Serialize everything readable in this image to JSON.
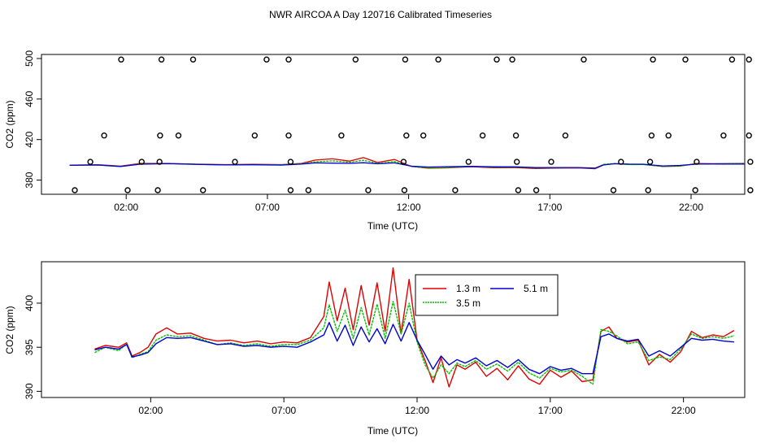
{
  "title": "NWR AIRCOA A  Day 120716  Calibrated Timeseries",
  "colors": {
    "s13": "#e00000",
    "s35": "#00c000",
    "s51": "#0000d0",
    "axis": "#000000"
  },
  "chart_data": [
    {
      "type": "scatter+line",
      "xlabel": "Time (UTC)",
      "ylabel": "CO2 (ppm)",
      "xlim": [
        -1,
        23.9
      ],
      "ylim": [
        366,
        504
      ],
      "xticks": [
        2,
        7,
        12,
        17,
        22
      ],
      "xtick_labels": [
        "02:00",
        "07:00",
        "12:00",
        "17:00",
        "22:00"
      ],
      "yticks": [
        380,
        420,
        460,
        500
      ],
      "ytick_labels": [
        "380",
        "420",
        "460",
        "500"
      ],
      "scatter_points": [
        [
          0.18,
          370
        ],
        [
          2.05,
          370
        ],
        [
          3.12,
          370
        ],
        [
          4.72,
          370
        ],
        [
          7.82,
          370
        ],
        [
          8.45,
          370
        ],
        [
          10.57,
          370
        ],
        [
          11.85,
          370
        ],
        [
          13.65,
          370
        ],
        [
          15.88,
          370
        ],
        [
          16.52,
          370
        ],
        [
          19.25,
          370
        ],
        [
          20.48,
          370
        ],
        [
          22.15,
          370
        ],
        [
          24.1,
          370
        ],
        [
          0.73,
          398
        ],
        [
          2.55,
          398
        ],
        [
          3.18,
          398
        ],
        [
          5.85,
          398
        ],
        [
          7.82,
          398
        ],
        [
          11.82,
          398
        ],
        [
          14.12,
          398
        ],
        [
          15.83,
          398
        ],
        [
          17.05,
          398
        ],
        [
          19.52,
          398
        ],
        [
          20.55,
          398
        ],
        [
          22.2,
          398
        ],
        [
          24.1,
          398
        ],
        [
          1.22,
          424
        ],
        [
          3.2,
          424
        ],
        [
          3.85,
          424
        ],
        [
          6.55,
          424
        ],
        [
          7.75,
          424
        ],
        [
          9.62,
          424
        ],
        [
          11.92,
          424
        ],
        [
          12.52,
          424
        ],
        [
          14.62,
          424
        ],
        [
          15.8,
          424
        ],
        [
          17.55,
          424
        ],
        [
          20.6,
          424
        ],
        [
          21.2,
          424
        ],
        [
          23.15,
          424
        ],
        [
          24.05,
          424
        ],
        [
          1.82,
          499
        ],
        [
          3.25,
          499
        ],
        [
          4.37,
          499
        ],
        [
          6.97,
          499
        ],
        [
          7.75,
          499
        ],
        [
          10.12,
          499
        ],
        [
          11.88,
          499
        ],
        [
          13.05,
          499
        ],
        [
          15.12,
          499
        ],
        [
          15.67,
          499
        ],
        [
          18.2,
          499
        ],
        [
          20.65,
          499
        ],
        [
          21.8,
          499
        ],
        [
          23.45,
          499
        ],
        [
          24.05,
          499
        ]
      ],
      "series": [
        {
          "name": "1.3 m",
          "x": [
            0,
            1,
            1.8,
            2.5,
            3.5,
            4.5,
            5.5,
            6.5,
            7.5,
            8.2,
            8.7,
            9.3,
            9.9,
            10.4,
            10.9,
            11.5,
            12.1,
            12.7,
            13.4,
            14.2,
            15.0,
            15.8,
            16.5,
            17.2,
            18.0,
            18.6,
            18.9,
            19.3,
            19.8,
            20.3,
            21,
            21.6,
            22.2,
            22.8,
            23.4,
            23.9
          ],
          "y": [
            394.8,
            395.2,
            393.8,
            396.5,
            396.5,
            395.7,
            395.3,
            395.5,
            395.3,
            396.5,
            399.8,
            401,
            398.7,
            402.2,
            397.4,
            400.3,
            393.4,
            391.7,
            392.1,
            393.2,
            392.2,
            392.3,
            391.4,
            391.8,
            392,
            391.2,
            395,
            396.2,
            395.4,
            395.5,
            393.4,
            393.8,
            396.3,
            396.2,
            396.4,
            396.5
          ]
        },
        {
          "name": "3.5 m",
          "x": [
            0,
            1,
            1.8,
            2.5,
            3.5,
            4.5,
            5.5,
            6.5,
            7.5,
            8.2,
            8.7,
            9.3,
            9.9,
            10.4,
            10.9,
            11.5,
            12.1,
            12.7,
            13.4,
            14.2,
            15.0,
            15.8,
            16.5,
            17.2,
            18.0,
            18.6,
            18.9,
            19.3,
            19.8,
            20.3,
            21,
            21.6,
            22.2,
            22.8,
            23.4,
            23.9
          ],
          "y": [
            394.6,
            394.9,
            393.5,
            396,
            396.3,
            395.5,
            395,
            395.2,
            395.1,
            396.2,
            398,
            399,
            397.5,
            399.5,
            396.5,
            398.3,
            393.4,
            392,
            392.3,
            393.4,
            392.6,
            392.7,
            391.9,
            392.1,
            392.2,
            391.5,
            395.5,
            396.4,
            395.3,
            395.4,
            393.6,
            394,
            396,
            396,
            396.2,
            396.2
          ]
        },
        {
          "name": "5.1 m",
          "x": [
            0,
            1,
            1.8,
            2.5,
            3.5,
            4.5,
            5.5,
            6.5,
            7.5,
            8.2,
            8.7,
            9.3,
            9.9,
            10.4,
            10.9,
            11.5,
            12.1,
            12.7,
            13.4,
            14.2,
            15.0,
            15.8,
            16.5,
            17.2,
            18.0,
            18.6,
            18.9,
            19.3,
            19.8,
            20.3,
            21,
            21.6,
            22.2,
            22.8,
            23.4,
            23.9
          ],
          "y": [
            394.6,
            394.9,
            393.4,
            395.7,
            396.2,
            395.5,
            395,
            395.1,
            394.8,
            395.8,
            397,
            396.7,
            396.5,
            397.1,
            396.1,
            397,
            393.8,
            392.9,
            393.3,
            393.5,
            393.1,
            393,
            392.3,
            392.4,
            392.4,
            391.8,
            395,
            396.2,
            395.8,
            395.7,
            394,
            394.5,
            395.8,
            395.9,
            395.8,
            395.8
          ]
        }
      ]
    },
    {
      "type": "line",
      "xlabel": "Time (UTC)",
      "ylabel": "CO2 (ppm)",
      "xlim": [
        -2.1,
        24.3
      ],
      "ylim": [
        389.3,
        404.7
      ],
      "xticks": [
        2,
        7,
        12,
        17,
        22
      ],
      "xtick_labels": [
        "02:00",
        "07:00",
        "12:00",
        "17:00",
        "22:00"
      ],
      "yticks": [
        390,
        395,
        400
      ],
      "ytick_labels": [
        "390",
        "395",
        "400"
      ],
      "legend": {
        "placement": "top-center",
        "labels": [
          "1.3 m",
          "5.1 m",
          "3.5 m"
        ]
      },
      "series": [
        {
          "name": "1.3 m",
          "x": [
            -0.1,
            0.3,
            0.8,
            1.1,
            1.3,
            1.6,
            1.9,
            2.2,
            2.6,
            3.0,
            3.5,
            4.0,
            4.5,
            5.0,
            5.5,
            6.0,
            6.5,
            7.0,
            7.5,
            8.0,
            8.5,
            8.7,
            9.0,
            9.3,
            9.6,
            9.9,
            10.2,
            10.5,
            10.8,
            11.1,
            11.4,
            11.7,
            12.0,
            12.3,
            12.6,
            12.9,
            13.2,
            13.5,
            13.8,
            14.2,
            14.6,
            15.0,
            15.4,
            15.8,
            16.2,
            16.6,
            17.0,
            17.4,
            17.8,
            18.2,
            18.6,
            18.9,
            19.2,
            19.5,
            19.9,
            20.3,
            20.7,
            21.1,
            21.5,
            21.9,
            22.3,
            22.7,
            23.1,
            23.5,
            23.9
          ],
          "y": [
            394.8,
            395.2,
            395.0,
            395.5,
            394.0,
            394.4,
            395.0,
            396.5,
            397.2,
            396.5,
            396.6,
            396.0,
            395.7,
            395.8,
            395.5,
            395.7,
            395.4,
            395.6,
            395.5,
            396.1,
            398.5,
            402.4,
            398.0,
            401.7,
            397.0,
            402.0,
            397.5,
            402.3,
            396.8,
            404.0,
            396.5,
            402.7,
            395.8,
            393.5,
            391.0,
            393.8,
            390.5,
            393.0,
            392.5,
            393.3,
            391.7,
            392.6,
            391.3,
            392.9,
            391.4,
            390.8,
            392.4,
            391.6,
            392.3,
            391.1,
            391.3,
            396.8,
            397.3,
            396.0,
            395.6,
            395.8,
            393.0,
            394.2,
            393.3,
            394.5,
            396.8,
            396.1,
            396.4,
            396.2,
            396.9
          ]
        },
        {
          "name": "3.5 m",
          "x": [
            -0.1,
            0.3,
            0.8,
            1.1,
            1.3,
            1.6,
            1.9,
            2.2,
            2.6,
            3.0,
            3.5,
            4.0,
            4.5,
            5.0,
            5.5,
            6.0,
            6.5,
            7.0,
            7.5,
            8.0,
            8.5,
            8.7,
            9.0,
            9.3,
            9.6,
            9.9,
            10.2,
            10.5,
            10.8,
            11.1,
            11.4,
            11.7,
            12.0,
            12.3,
            12.6,
            12.9,
            13.2,
            13.5,
            13.8,
            14.2,
            14.6,
            15.0,
            15.4,
            15.8,
            16.2,
            16.6,
            17.0,
            17.4,
            17.8,
            18.2,
            18.6,
            18.9,
            19.2,
            19.5,
            19.9,
            20.3,
            20.7,
            21.1,
            21.5,
            21.9,
            22.3,
            22.7,
            23.1,
            23.5,
            23.9
          ],
          "y": [
            394.4,
            395.0,
            394.6,
            395.4,
            393.8,
            394.2,
            394.5,
            395.8,
            396.4,
            396.2,
            396.3,
            395.8,
            395.3,
            395.5,
            395.2,
            395.4,
            395.1,
            395.3,
            395.3,
            395.8,
            397.2,
            399.8,
            396.8,
            399.2,
            396.0,
            399.5,
            396.4,
            399.9,
            396.0,
            400.2,
            396.5,
            400.0,
            395.6,
            393.0,
            391.5,
            393.0,
            392.0,
            393.2,
            392.8,
            393.5,
            392.5,
            393.1,
            392.3,
            393.3,
            392.1,
            391.5,
            392.6,
            392.2,
            392.4,
            391.7,
            390.8,
            397.0,
            396.8,
            396.3,
            395.4,
            395.6,
            393.5,
            393.9,
            393.6,
            394.8,
            396.5,
            396.0,
            396.2,
            396.0,
            396.3
          ]
        },
        {
          "name": "5.1 m",
          "x": [
            -0.1,
            0.3,
            0.8,
            1.1,
            1.3,
            1.6,
            1.9,
            2.2,
            2.6,
            3.0,
            3.5,
            4.0,
            4.5,
            5.0,
            5.5,
            6.0,
            6.5,
            7.0,
            7.5,
            8.0,
            8.5,
            8.7,
            9.0,
            9.3,
            9.6,
            9.9,
            10.2,
            10.5,
            10.8,
            11.1,
            11.4,
            11.7,
            12.0,
            12.3,
            12.6,
            12.9,
            13.2,
            13.5,
            13.8,
            14.2,
            14.6,
            15.0,
            15.4,
            15.8,
            16.2,
            16.6,
            17.0,
            17.4,
            17.8,
            18.2,
            18.6,
            18.9,
            19.2,
            19.5,
            19.9,
            20.3,
            20.7,
            21.1,
            21.5,
            21.9,
            22.3,
            22.7,
            23.1,
            23.5,
            23.9
          ],
          "y": [
            394.7,
            395.0,
            394.8,
            395.3,
            393.9,
            394.1,
            394.4,
            395.4,
            396.1,
            396.0,
            396.1,
            395.7,
            395.3,
            395.4,
            395.1,
            395.2,
            395.0,
            395.1,
            395.0,
            395.6,
            396.4,
            397.8,
            395.7,
            397.5,
            395.2,
            397.3,
            395.6,
            397.1,
            395.4,
            397.6,
            395.7,
            397.8,
            395.8,
            394.2,
            392.5,
            394.0,
            393.0,
            393.6,
            393.2,
            393.8,
            392.9,
            393.5,
            392.7,
            393.6,
            392.5,
            392.0,
            392.8,
            392.4,
            392.6,
            392.0,
            392.0,
            396.2,
            396.5,
            396.0,
            395.7,
            395.9,
            394.0,
            394.6,
            394.0,
            395.0,
            396.0,
            395.8,
            395.9,
            395.7,
            395.6
          ]
        }
      ]
    }
  ]
}
